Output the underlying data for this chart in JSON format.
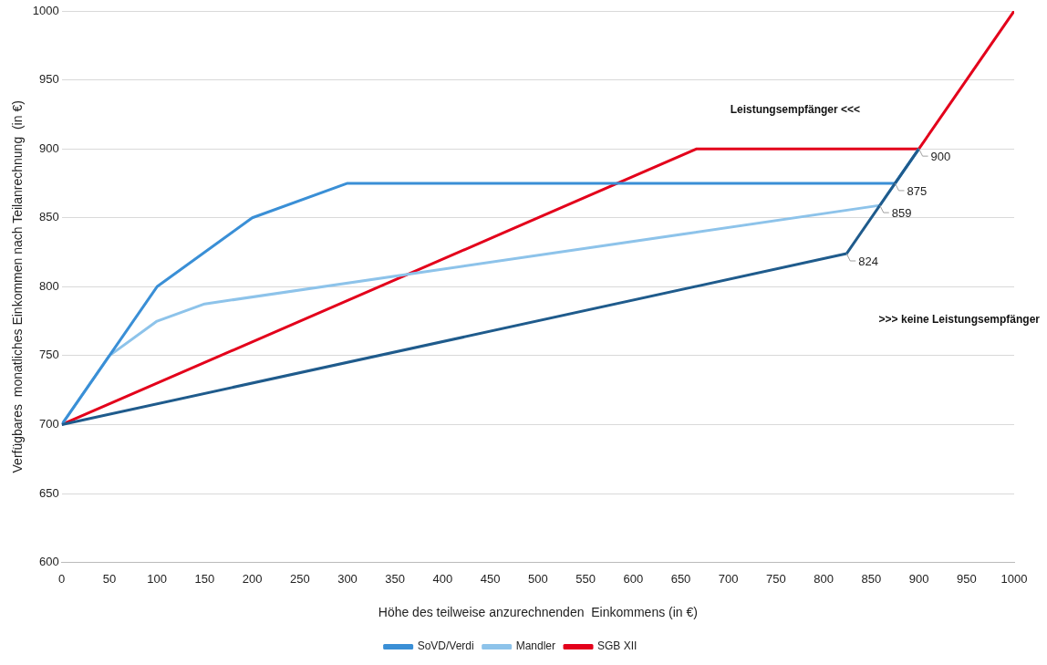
{
  "chart_data": {
    "type": "line",
    "xlabel": "Höhe des teilweise anzurechnenden  Einkommens (in €)",
    "ylabel": "Verfügbares  monatliches Einkommen nach Teilanrechnung  (in €)",
    "series": [
      {
        "color": "#1f5b8c",
        "x": [
          0,
          824,
          859,
          875,
          900
        ],
        "values": [
          700,
          824,
          859,
          875,
          900
        ]
      },
      {
        "name": "SoVD/Verdi",
        "color": "#3a8fd6",
        "x": [
          0,
          100,
          200,
          300,
          875,
          900
        ],
        "values": [
          700,
          800,
          850,
          875,
          875,
          900
        ]
      },
      {
        "name": "Mandler",
        "color": "#8dc3ea",
        "x": [
          0,
          50,
          100,
          150,
          859,
          875,
          900
        ],
        "values": [
          700,
          750,
          775,
          787.5,
          859,
          875,
          900
        ]
      },
      {
        "name": "SGB XII",
        "color": "#e3001b",
        "x": [
          0,
          666.7,
          900,
          1000
        ],
        "values": [
          700,
          900,
          900,
          1000
        ]
      }
    ],
    "annotations": [
      {
        "text": "824",
        "x": 824,
        "y": 824
      },
      {
        "text": "859",
        "x": 859,
        "y": 859
      },
      {
        "text": "875",
        "x": 875,
        "y": 875
      },
      {
        "text": "900",
        "x": 900,
        "y": 900
      },
      "Leistungsempfänger <<<",
      ">>> keine Leistungsempfänger"
    ],
    "xlim": [
      0,
      1000
    ],
    "xticks": [
      0,
      50,
      100,
      150,
      200,
      250,
      300,
      350,
      400,
      450,
      500,
      550,
      600,
      650,
      700,
      750,
      800,
      850,
      900,
      950,
      1000
    ],
    "ylim": [
      600,
      1000
    ],
    "yticks": [
      600,
      650,
      700,
      750,
      800,
      850,
      900,
      950,
      1000
    ],
    "grid": "y",
    "legend": "bottom",
    "marker": "none",
    "line_style": "solid"
  }
}
